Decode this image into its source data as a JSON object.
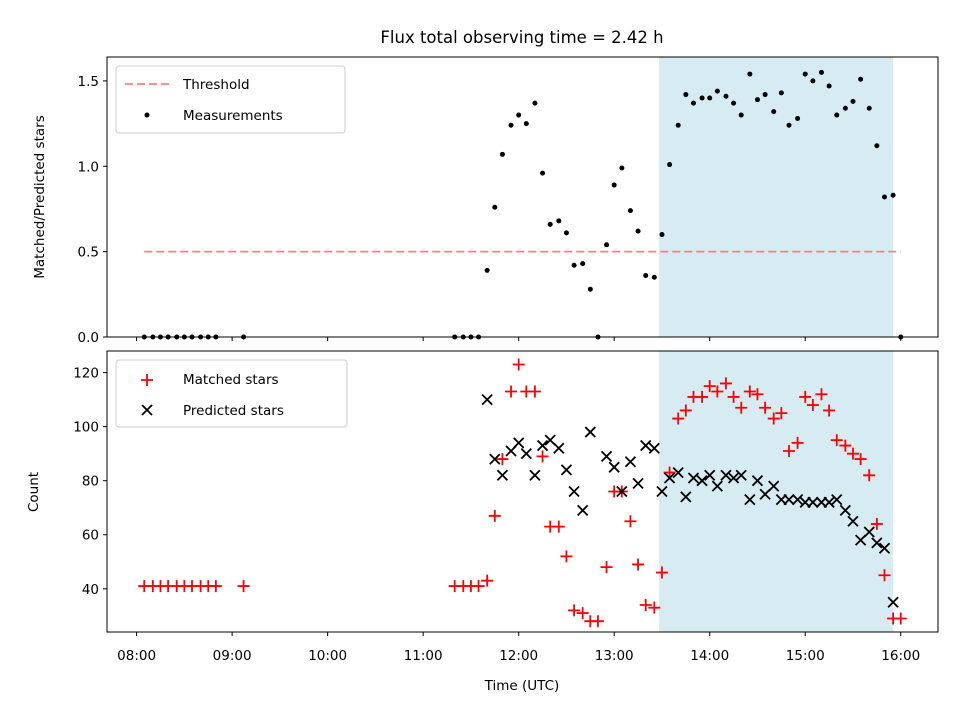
{
  "chart_data": {
    "title": "Flux total observing time = 2.42 h",
    "xlabel": "Time (UTC)",
    "x_ticks": [
      "08:00",
      "09:00",
      "10:00",
      "11:00",
      "12:00",
      "13:00",
      "14:00",
      "15:00",
      "16:00"
    ],
    "xlim": [
      7.69,
      16.39
    ],
    "highlight_span": [
      13.47,
      15.92
    ],
    "colors": {
      "highlight": "#add8e6",
      "threshold": "#ff7f7f",
      "matched": "#ff0000",
      "predicted": "#000000",
      "measure": "#000000"
    },
    "panels": [
      {
        "type": "scatter",
        "ylabel": "Matched/Predicted stars",
        "ylim": [
          0,
          1.64
        ],
        "y_ticks": [
          0.0,
          0.5,
          1.0,
          1.5
        ],
        "y_tick_labels": [
          "0.0",
          "0.5",
          "1.0",
          "1.5"
        ],
        "legend": [
          "Threshold",
          "Measurements"
        ],
        "threshold": {
          "name": "Threshold",
          "value": 0.5,
          "x_range": [
            8.08,
            16.0
          ]
        },
        "series": [
          {
            "name": "Measurements",
            "marker": "dot",
            "points": [
              [
                8.08,
                0
              ],
              [
                8.17,
                0
              ],
              [
                8.25,
                0
              ],
              [
                8.33,
                0
              ],
              [
                8.42,
                0
              ],
              [
                8.5,
                0
              ],
              [
                8.58,
                0
              ],
              [
                8.67,
                0
              ],
              [
                8.75,
                0
              ],
              [
                8.83,
                0
              ],
              [
                9.12,
                0
              ],
              [
                11.33,
                0
              ],
              [
                11.42,
                0
              ],
              [
                11.5,
                0
              ],
              [
                11.58,
                0
              ],
              [
                11.67,
                0.39
              ],
              [
                11.75,
                0.76
              ],
              [
                11.83,
                1.07
              ],
              [
                11.92,
                1.24
              ],
              [
                12.0,
                1.3
              ],
              [
                12.08,
                1.25
              ],
              [
                12.17,
                1.37
              ],
              [
                12.25,
                0.96
              ],
              [
                12.33,
                0.66
              ],
              [
                12.42,
                0.68
              ],
              [
                12.5,
                0.61
              ],
              [
                12.58,
                0.42
              ],
              [
                12.67,
                0.43
              ],
              [
                12.75,
                0.28
              ],
              [
                12.83,
                0
              ],
              [
                12.92,
                0.54
              ],
              [
                13.0,
                0.89
              ],
              [
                13.08,
                0.99
              ],
              [
                13.17,
                0.74
              ],
              [
                13.25,
                0.62
              ],
              [
                13.33,
                0.36
              ],
              [
                13.42,
                0.35
              ],
              [
                13.5,
                0.6
              ],
              [
                13.58,
                1.01
              ],
              [
                13.67,
                1.24
              ],
              [
                13.75,
                1.42
              ],
              [
                13.83,
                1.37
              ],
              [
                13.92,
                1.4
              ],
              [
                14.0,
                1.4
              ],
              [
                14.08,
                1.44
              ],
              [
                14.17,
                1.41
              ],
              [
                14.25,
                1.37
              ],
              [
                14.33,
                1.3
              ],
              [
                14.42,
                1.54
              ],
              [
                14.5,
                1.39
              ],
              [
                14.58,
                1.42
              ],
              [
                14.67,
                1.32
              ],
              [
                14.75,
                1.43
              ],
              [
                14.83,
                1.24
              ],
              [
                14.92,
                1.28
              ],
              [
                15.0,
                1.54
              ],
              [
                15.08,
                1.5
              ],
              [
                15.17,
                1.55
              ],
              [
                15.25,
                1.47
              ],
              [
                15.33,
                1.3
              ],
              [
                15.42,
                1.34
              ],
              [
                15.5,
                1.38
              ],
              [
                15.58,
                1.51
              ],
              [
                15.67,
                1.34
              ],
              [
                15.75,
                1.12
              ],
              [
                15.83,
                0.82
              ],
              [
                15.92,
                0.83
              ],
              [
                16.0,
                0
              ]
            ]
          }
        ]
      },
      {
        "type": "scatter",
        "ylabel": "Count",
        "ylim": [
          24,
          128
        ],
        "y_ticks": [
          40,
          60,
          80,
          100,
          120
        ],
        "y_tick_labels": [
          "40",
          "60",
          "80",
          "100",
          "120"
        ],
        "legend": [
          "Matched stars",
          "Predicted stars"
        ],
        "series": [
          {
            "name": "Matched stars",
            "marker": "plus",
            "points": [
              [
                8.08,
                41
              ],
              [
                8.17,
                41
              ],
              [
                8.25,
                41
              ],
              [
                8.33,
                41
              ],
              [
                8.42,
                41
              ],
              [
                8.5,
                41
              ],
              [
                8.58,
                41
              ],
              [
                8.67,
                41
              ],
              [
                8.75,
                41
              ],
              [
                8.83,
                41
              ],
              [
                9.12,
                41
              ],
              [
                11.33,
                41
              ],
              [
                11.42,
                41
              ],
              [
                11.5,
                41
              ],
              [
                11.58,
                41
              ],
              [
                11.67,
                43
              ],
              [
                11.75,
                67
              ],
              [
                11.83,
                88
              ],
              [
                11.92,
                113
              ],
              [
                12.0,
                123
              ],
              [
                12.08,
                113
              ],
              [
                12.17,
                113
              ],
              [
                12.25,
                89
              ],
              [
                12.33,
                63
              ],
              [
                12.42,
                63
              ],
              [
                12.5,
                52
              ],
              [
                12.58,
                32
              ],
              [
                12.67,
                31
              ],
              [
                12.75,
                28
              ],
              [
                12.83,
                28
              ],
              [
                12.92,
                48
              ],
              [
                13.0,
                76
              ],
              [
                13.08,
                76
              ],
              [
                13.17,
                65
              ],
              [
                13.25,
                49
              ],
              [
                13.33,
                34
              ],
              [
                13.42,
                33
              ],
              [
                13.5,
                46
              ],
              [
                13.58,
                83
              ],
              [
                13.67,
                103
              ],
              [
                13.75,
                106
              ],
              [
                13.83,
                111
              ],
              [
                13.92,
                111
              ],
              [
                14.0,
                115
              ],
              [
                14.08,
                113
              ],
              [
                14.17,
                116
              ],
              [
                14.25,
                111
              ],
              [
                14.33,
                107
              ],
              [
                14.42,
                113
              ],
              [
                14.5,
                112
              ],
              [
                14.58,
                107
              ],
              [
                14.67,
                103
              ],
              [
                14.75,
                105
              ],
              [
                14.83,
                91
              ],
              [
                14.92,
                94
              ],
              [
                15.0,
                111
              ],
              [
                15.08,
                108
              ],
              [
                15.17,
                112
              ],
              [
                15.25,
                106
              ],
              [
                15.33,
                95
              ],
              [
                15.42,
                93
              ],
              [
                15.5,
                90
              ],
              [
                15.58,
                88
              ],
              [
                15.67,
                82
              ],
              [
                15.75,
                64
              ],
              [
                15.83,
                45
              ],
              [
                15.92,
                29
              ],
              [
                16.0,
                29
              ]
            ]
          },
          {
            "name": "Predicted stars",
            "marker": "x",
            "points": [
              [
                11.67,
                110
              ],
              [
                11.75,
                88
              ],
              [
                11.83,
                82
              ],
              [
                11.92,
                91
              ],
              [
                12.0,
                94
              ],
              [
                12.08,
                90
              ],
              [
                12.17,
                82
              ],
              [
                12.25,
                93
              ],
              [
                12.33,
                95
              ],
              [
                12.42,
                92
              ],
              [
                12.5,
                84
              ],
              [
                12.58,
                76
              ],
              [
                12.67,
                69
              ],
              [
                12.75,
                98
              ],
              [
                12.92,
                89
              ],
              [
                13.0,
                85
              ],
              [
                13.08,
                76
              ],
              [
                13.17,
                87
              ],
              [
                13.25,
                79
              ],
              [
                13.33,
                93
              ],
              [
                13.42,
                92
              ],
              [
                13.5,
                76
              ],
              [
                13.58,
                81
              ],
              [
                13.67,
                83
              ],
              [
                13.75,
                74
              ],
              [
                13.83,
                81
              ],
              [
                13.92,
                80
              ],
              [
                14.0,
                82
              ],
              [
                14.08,
                78
              ],
              [
                14.17,
                82
              ],
              [
                14.25,
                81
              ],
              [
                14.33,
                82
              ],
              [
                14.42,
                73
              ],
              [
                14.5,
                80
              ],
              [
                14.58,
                75
              ],
              [
                14.67,
                78
              ],
              [
                14.75,
                73
              ],
              [
                14.83,
                73
              ],
              [
                14.92,
                73
              ],
              [
                15.0,
                72
              ],
              [
                15.08,
                72
              ],
              [
                15.17,
                72
              ],
              [
                15.25,
                72
              ],
              [
                15.33,
                73
              ],
              [
                15.42,
                69
              ],
              [
                15.5,
                65
              ],
              [
                15.58,
                58
              ],
              [
                15.67,
                61
              ],
              [
                15.75,
                57
              ],
              [
                15.83,
                55
              ],
              [
                15.92,
                35
              ]
            ]
          }
        ]
      }
    ]
  }
}
